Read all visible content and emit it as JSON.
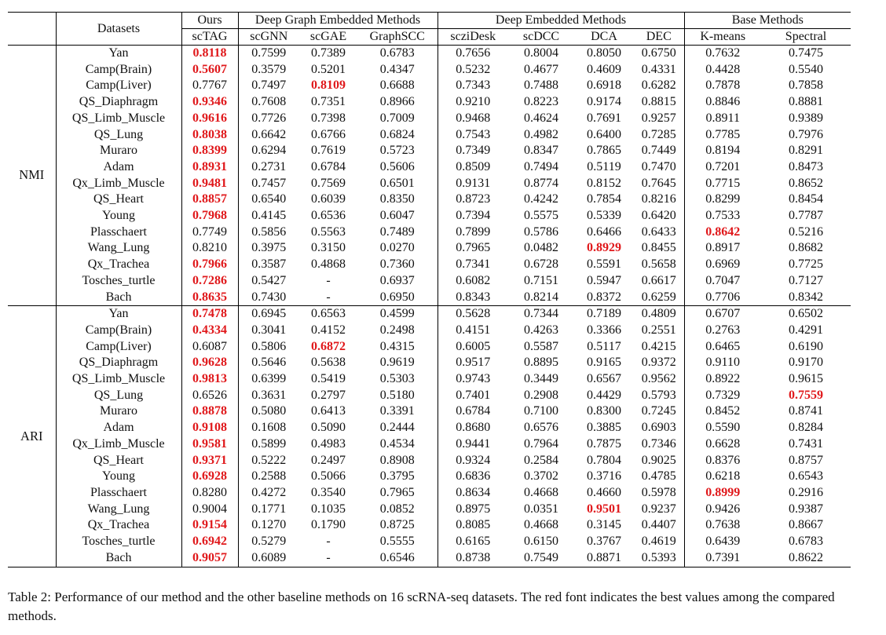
{
  "header": {
    "datasets_label": "Datasets",
    "groups": [
      {
        "label": "Ours",
        "methods": [
          "scTAG"
        ]
      },
      {
        "label": "Deep Graph Embedded Methods",
        "methods": [
          "scGNN",
          "scGAE",
          "GraphSCC"
        ]
      },
      {
        "label": "Deep Embedded Methods",
        "methods": [
          "scziDesk",
          "scDCC",
          "DCA",
          "DEC"
        ]
      },
      {
        "label": "Base Methods",
        "methods": [
          "K-means",
          "Spectral"
        ]
      }
    ]
  },
  "sections": [
    {
      "metric": "NMI",
      "rows": [
        {
          "dataset": "Yan",
          "values": [
            "0.8118",
            "0.7599",
            "0.7389",
            "0.6783",
            "0.7656",
            "0.8004",
            "0.8050",
            "0.6750",
            "0.7632",
            "0.7475"
          ],
          "best": [
            0
          ]
        },
        {
          "dataset": "Camp(Brain)",
          "values": [
            "0.5607",
            "0.3579",
            "0.5201",
            "0.4347",
            "0.5232",
            "0.4677",
            "0.4609",
            "0.4331",
            "0.4428",
            "0.5540"
          ],
          "best": [
            0
          ]
        },
        {
          "dataset": "Camp(Liver)",
          "values": [
            "0.7767",
            "0.7497",
            "0.8109",
            "0.6688",
            "0.7343",
            "0.7488",
            "0.6918",
            "0.6282",
            "0.7878",
            "0.7858"
          ],
          "best": [
            2
          ]
        },
        {
          "dataset": "QS_Diaphragm",
          "values": [
            "0.9346",
            "0.7608",
            "0.7351",
            "0.8966",
            "0.9210",
            "0.8223",
            "0.9174",
            "0.8815",
            "0.8846",
            "0.8881"
          ],
          "best": [
            0
          ]
        },
        {
          "dataset": "QS_Limb_Muscle",
          "values": [
            "0.9616",
            "0.7726",
            "0.7398",
            "0.7009",
            "0.9468",
            "0.4624",
            "0.7691",
            "0.9257",
            "0.8911",
            "0.9389"
          ],
          "best": [
            0
          ]
        },
        {
          "dataset": "QS_Lung",
          "values": [
            "0.8038",
            "0.6642",
            "0.6766",
            "0.6824",
            "0.7543",
            "0.4982",
            "0.6400",
            "0.7285",
            "0.7785",
            "0.7976"
          ],
          "best": [
            0
          ]
        },
        {
          "dataset": "Muraro",
          "values": [
            "0.8399",
            "0.6294",
            "0.7619",
            "0.5723",
            "0.7349",
            "0.8347",
            "0.7865",
            "0.7449",
            "0.8194",
            "0.8291"
          ],
          "best": [
            0
          ]
        },
        {
          "dataset": "Adam",
          "values": [
            "0.8931",
            "0.2731",
            "0.6784",
            "0.5606",
            "0.8509",
            "0.7494",
            "0.5119",
            "0.7470",
            "0.7201",
            "0.8473"
          ],
          "best": [
            0
          ]
        },
        {
          "dataset": "Qx_Limb_Muscle",
          "values": [
            "0.9481",
            "0.7457",
            "0.7569",
            "0.6501",
            "0.9131",
            "0.8774",
            "0.8152",
            "0.7645",
            "0.7715",
            "0.8652"
          ],
          "best": [
            0
          ]
        },
        {
          "dataset": "QS_Heart",
          "values": [
            "0.8857",
            "0.6540",
            "0.6039",
            "0.8350",
            "0.8723",
            "0.4242",
            "0.7854",
            "0.8216",
            "0.8299",
            "0.8454"
          ],
          "best": [
            0
          ]
        },
        {
          "dataset": "Young",
          "values": [
            "0.7968",
            "0.4145",
            "0.6536",
            "0.6047",
            "0.7394",
            "0.5575",
            "0.5339",
            "0.6420",
            "0.7533",
            "0.7787"
          ],
          "best": [
            0
          ]
        },
        {
          "dataset": "Plasschaert",
          "values": [
            "0.7749",
            "0.5856",
            "0.5563",
            "0.7489",
            "0.7899",
            "0.5786",
            "0.6466",
            "0.6433",
            "0.8642",
            "0.5216"
          ],
          "best": [
            8
          ]
        },
        {
          "dataset": "Wang_Lung",
          "values": [
            "0.8210",
            "0.3975",
            "0.3150",
            "0.0270",
            "0.7965",
            "0.0482",
            "0.8929",
            "0.8455",
            "0.8917",
            "0.8682"
          ],
          "best": [
            6
          ]
        },
        {
          "dataset": "Qx_Trachea",
          "values": [
            "0.7966",
            "0.3587",
            "0.4868",
            "0.7360",
            "0.7341",
            "0.6728",
            "0.5591",
            "0.5658",
            "0.6969",
            "0.7725"
          ],
          "best": [
            0
          ]
        },
        {
          "dataset": "Tosches_turtle",
          "values": [
            "0.7286",
            "0.5427",
            "-",
            "0.6937",
            "0.6082",
            "0.7151",
            "0.5947",
            "0.6617",
            "0.7047",
            "0.7127"
          ],
          "best": [
            0
          ]
        },
        {
          "dataset": "Bach",
          "values": [
            "0.8635",
            "0.7430",
            "-",
            "0.6950",
            "0.8343",
            "0.8214",
            "0.8372",
            "0.6259",
            "0.7706",
            "0.8342"
          ],
          "best": [
            0
          ]
        }
      ]
    },
    {
      "metric": "ARI",
      "rows": [
        {
          "dataset": "Yan",
          "values": [
            "0.7478",
            "0.6945",
            "0.6563",
            "0.4599",
            "0.5628",
            "0.7344",
            "0.7189",
            "0.4809",
            "0.6707",
            "0.6502"
          ],
          "best": [
            0
          ]
        },
        {
          "dataset": "Camp(Brain)",
          "values": [
            "0.4334",
            "0.3041",
            "0.4152",
            "0.2498",
            "0.4151",
            "0.4263",
            "0.3366",
            "0.2551",
            "0.2763",
            "0.4291"
          ],
          "best": [
            0
          ]
        },
        {
          "dataset": "Camp(Liver)",
          "values": [
            "0.6087",
            "0.5806",
            "0.6872",
            "0.4315",
            "0.6005",
            "0.5587",
            "0.5117",
            "0.4215",
            "0.6465",
            "0.6190"
          ],
          "best": [
            2
          ]
        },
        {
          "dataset": "QS_Diaphragm",
          "values": [
            "0.9628",
            "0.5646",
            "0.5638",
            "0.9619",
            "0.9517",
            "0.8895",
            "0.9165",
            "0.9372",
            "0.9110",
            "0.9170"
          ],
          "best": [
            0
          ]
        },
        {
          "dataset": "QS_Limb_Muscle",
          "values": [
            "0.9813",
            "0.6399",
            "0.5419",
            "0.5303",
            "0.9743",
            "0.3449",
            "0.6567",
            "0.9562",
            "0.8922",
            "0.9615"
          ],
          "best": [
            0
          ]
        },
        {
          "dataset": "QS_Lung",
          "values": [
            "0.6526",
            "0.3631",
            "0.2797",
            "0.5180",
            "0.7401",
            "0.2908",
            "0.4429",
            "0.5793",
            "0.7329",
            "0.7559"
          ],
          "best": [
            9
          ]
        },
        {
          "dataset": "Muraro",
          "values": [
            "0.8878",
            "0.5080",
            "0.6413",
            "0.3391",
            "0.6784",
            "0.7100",
            "0.8300",
            "0.7245",
            "0.8452",
            "0.8741"
          ],
          "best": [
            0
          ]
        },
        {
          "dataset": "Adam",
          "values": [
            "0.9108",
            "0.1608",
            "0.5090",
            "0.2444",
            "0.8680",
            "0.6576",
            "0.3885",
            "0.6903",
            "0.5590",
            "0.8284"
          ],
          "best": [
            0
          ]
        },
        {
          "dataset": "Qx_Limb_Muscle",
          "values": [
            "0.9581",
            "0.5899",
            "0.4983",
            "0.4534",
            "0.9441",
            "0.7964",
            "0.7875",
            "0.7346",
            "0.6628",
            "0.7431"
          ],
          "best": [
            0
          ]
        },
        {
          "dataset": "QS_Heart",
          "values": [
            "0.9371",
            "0.5222",
            "0.2497",
            "0.8908",
            "0.9324",
            "0.2584",
            "0.7804",
            "0.9025",
            "0.8376",
            "0.8757"
          ],
          "best": [
            0
          ]
        },
        {
          "dataset": "Young",
          "values": [
            "0.6928",
            "0.2588",
            "0.5066",
            "0.3795",
            "0.6836",
            "0.3702",
            "0.3716",
            "0.4785",
            "0.6218",
            "0.6543"
          ],
          "best": [
            0
          ]
        },
        {
          "dataset": "Plasschaert",
          "values": [
            "0.8280",
            "0.4272",
            "0.3540",
            "0.7965",
            "0.8634",
            "0.4668",
            "0.4660",
            "0.5978",
            "0.8999",
            "0.2916"
          ],
          "best": [
            8
          ]
        },
        {
          "dataset": "Wang_Lung",
          "values": [
            "0.9004",
            "0.1771",
            "0.1035",
            "0.0852",
            "0.8975",
            "0.0351",
            "0.9501",
            "0.9237",
            "0.9426",
            "0.9387"
          ],
          "best": [
            6
          ]
        },
        {
          "dataset": "Qx_Trachea",
          "values": [
            "0.9154",
            "0.1270",
            "0.1790",
            "0.8725",
            "0.8085",
            "0.4668",
            "0.3145",
            "0.4407",
            "0.7638",
            "0.8667"
          ],
          "best": [
            0
          ]
        },
        {
          "dataset": "Tosches_turtle",
          "values": [
            "0.6942",
            "0.5279",
            "-",
            "0.5555",
            "0.6165",
            "0.6150",
            "0.3767",
            "0.4619",
            "0.6439",
            "0.6783"
          ],
          "best": [
            0
          ]
        },
        {
          "dataset": "Bach",
          "values": [
            "0.9057",
            "0.6089",
            "-",
            "0.6546",
            "0.8738",
            "0.7549",
            "0.8871",
            "0.5393",
            "0.7391",
            "0.8622"
          ],
          "best": [
            0
          ]
        }
      ]
    }
  ],
  "caption": "Table 2: Performance of our method and the other baseline methods on 16 scRNA-seq datasets. The red font indicates the best values among the compared methods.",
  "colors": {
    "best": "#e0181b",
    "text": "#111111"
  }
}
